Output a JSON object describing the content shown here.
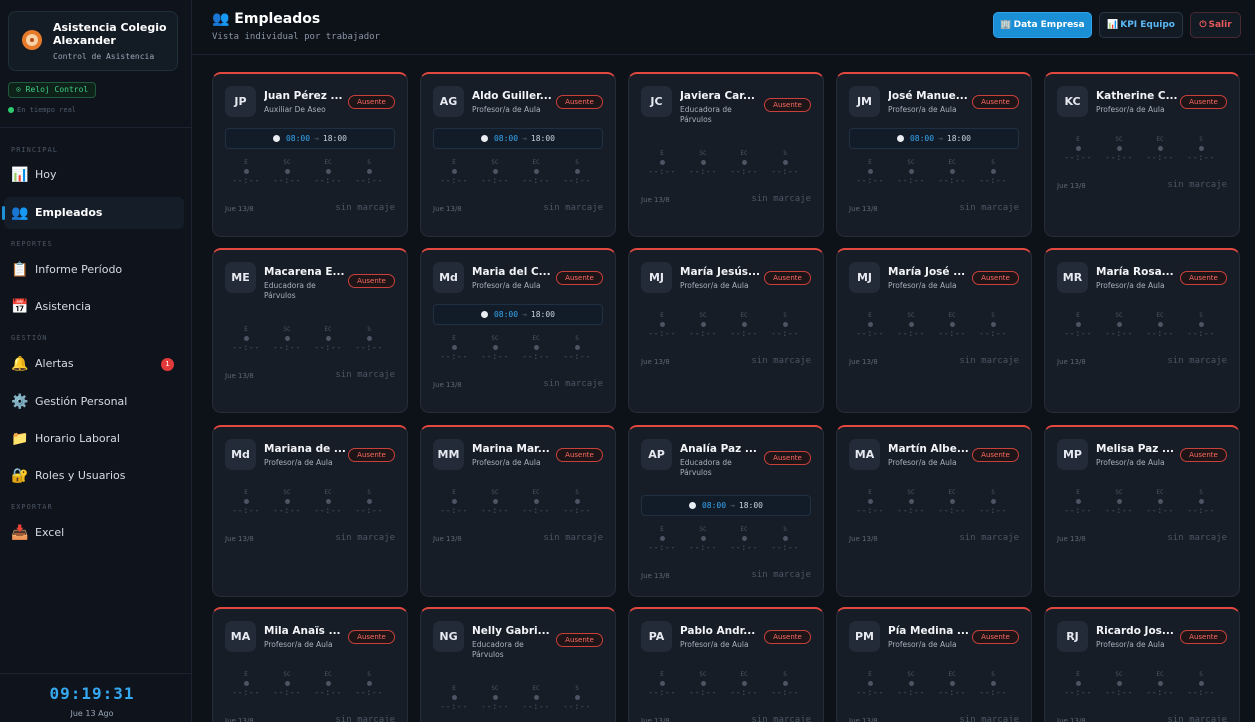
{
  "sidebar": {
    "brand_title": "Asistencia Colegio Alexander",
    "brand_subtitle": "Control de Asistencia",
    "reloj_label": "⊙ Reloj Control",
    "live_label": "En tiempo real",
    "sections": {
      "principal": "PRINCIPAL",
      "reportes": "REPORTES",
      "gestion": "GESTIÓN",
      "exportar": "EXPORTAR"
    },
    "items": [
      {
        "label": "Hoy",
        "icon": "📊"
      },
      {
        "label": "Empleados",
        "icon": "👥"
      },
      {
        "label": "Informe Período",
        "icon": "📋"
      },
      {
        "label": "Asistencia",
        "icon": "📅"
      },
      {
        "label": "Alertas",
        "icon": "🔔",
        "badge": "1"
      },
      {
        "label": "Gestión Personal",
        "icon": "⚙️"
      },
      {
        "label": "Horario Laboral",
        "icon": "📁"
      },
      {
        "label": "Roles y Usuarios",
        "icon": "🔐"
      },
      {
        "label": "Excel",
        "icon": "📥"
      }
    ],
    "clock": "09:19:31",
    "date": "Jue 13 Ago"
  },
  "header": {
    "title": "👥 Empleados",
    "subtitle": "Vista individual por trabajador",
    "btn_data": "Data Empresa",
    "btn_data_icon": "🏢",
    "btn_kpi": "KPI Equipo",
    "btn_kpi_icon": "📊",
    "btn_salir": "Salir",
    "btn_salir_icon": "⏻"
  },
  "common": {
    "status": "Ausente",
    "mark_labels": [
      "E",
      "SC",
      "EC",
      "S"
    ],
    "mark_empty": "--:--",
    "date": "Jue 13/8",
    "no_mark": "sin marcaje",
    "sched_in": "08:00",
    "sched_arrow": "→",
    "sched_out": "18:00"
  },
  "colors": {
    "accent": "#1b8fd6",
    "absent": "#e2483f",
    "online": "#2ecc71"
  },
  "employees": [
    {
      "initials": "JP",
      "name": "Juan Pérez ...",
      "role": "Auxiliar De Aseo",
      "schedule": true
    },
    {
      "initials": "AG",
      "name": "Aldo Guiller...",
      "role": "Profesor/a de Aula",
      "schedule": true
    },
    {
      "initials": "JC",
      "name": "Javiera Car...",
      "role": "Educadora de Párvulos",
      "schedule": false
    },
    {
      "initials": "JM",
      "name": "José Manue...",
      "role": "Profesor/a de Aula",
      "schedule": true
    },
    {
      "initials": "KC",
      "name": "Katherine C...",
      "role": "Profesor/a de Aula",
      "schedule": false
    },
    {
      "initials": "ME",
      "name": "Macarena E...",
      "role": "Educadora de Párvulos",
      "schedule": false
    },
    {
      "initials": "Md",
      "name": "Maria del C...",
      "role": "Profesor/a de Aula",
      "schedule": true
    },
    {
      "initials": "MJ",
      "name": "María Jesús...",
      "role": "Profesor/a de Aula",
      "schedule": false
    },
    {
      "initials": "MJ",
      "name": "María José ...",
      "role": "Profesor/a de Aula",
      "schedule": false
    },
    {
      "initials": "MR",
      "name": "María Rosa...",
      "role": "Profesor/a de Aula",
      "schedule": false
    },
    {
      "initials": "Md",
      "name": "Mariana de ...",
      "role": "Profesor/a de Aula",
      "schedule": false
    },
    {
      "initials": "MM",
      "name": "Marina Mar...",
      "role": "Profesor/a de Aula",
      "schedule": false
    },
    {
      "initials": "AP",
      "name": "Analía Paz ...",
      "role": "Educadora de Párvulos",
      "schedule": true
    },
    {
      "initials": "MA",
      "name": "Martín Albe...",
      "role": "Profesor/a de Aula",
      "schedule": false
    },
    {
      "initials": "MP",
      "name": "Melisa Paz ...",
      "role": "Profesor/a de Aula",
      "schedule": false
    },
    {
      "initials": "MA",
      "name": "Mila Anaïs ...",
      "role": "Profesor/a de Aula",
      "schedule": false
    },
    {
      "initials": "NG",
      "name": "Nelly Gabri...",
      "role": "Educadora de Párvulos",
      "schedule": false
    },
    {
      "initials": "PA",
      "name": "Pablo Andr...",
      "role": "Profesor/a de Aula",
      "schedule": false
    },
    {
      "initials": "PM",
      "name": "Pía Medina ...",
      "role": "Profesor/a de Aula",
      "schedule": false
    },
    {
      "initials": "RJ",
      "name": "Ricardo Jos...",
      "role": "Profesor/a de Aula",
      "schedule": false
    }
  ]
}
